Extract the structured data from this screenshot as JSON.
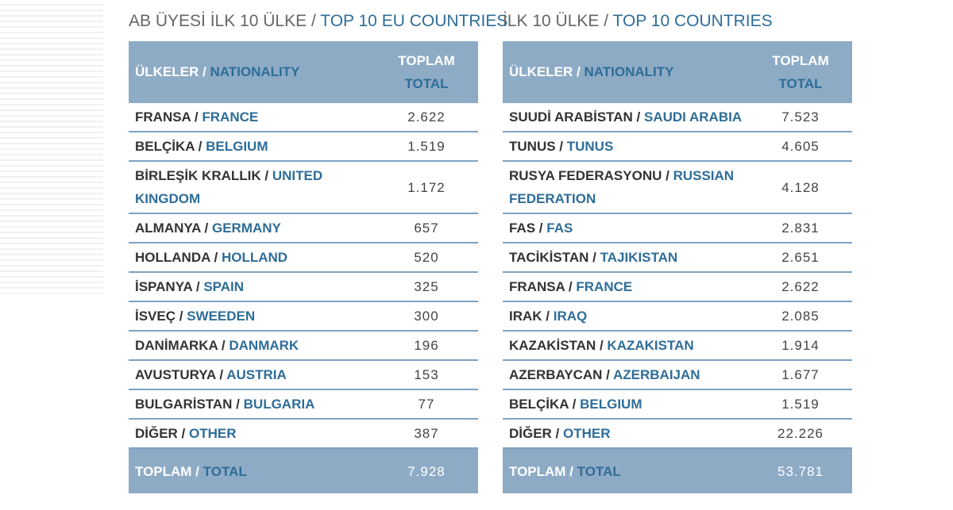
{
  "tables": [
    {
      "title": {
        "tr": "AB ÜYESİ İLK 10 ÜLKE /",
        "en": "TOP 10 EU COUNTRIES"
      },
      "header": {
        "name_tr": "ÜLKELER /",
        "name_en": "NATIONALITY",
        "total_tr": "TOPLAM",
        "total_en": "TOTAL"
      },
      "rows": [
        {
          "tr": "FRANSA /",
          "en": "FRANCE",
          "total": "2.622"
        },
        {
          "tr": "BELÇİKA /",
          "en": "BELGIUM",
          "total": "1.519"
        },
        {
          "tr": "BİRLEŞİK KRALLIK /",
          "en": "UNITED KINGDOM",
          "total": "1.172"
        },
        {
          "tr": "ALMANYA /",
          "en": "GERMANY",
          "total": "657"
        },
        {
          "tr": "HOLLANDA /",
          "en": "HOLLAND",
          "total": "520"
        },
        {
          "tr": "İSPANYA /",
          "en": "SPAIN",
          "total": "325"
        },
        {
          "tr": "İSVEÇ /",
          "en": "SWEEDEN",
          "total": "300"
        },
        {
          "tr": "DANİMARKA /",
          "en": "DANMARK",
          "total": "196"
        },
        {
          "tr": "AVUSTURYA /",
          "en": "AUSTRIA",
          "total": "153"
        },
        {
          "tr": "BULGARİSTAN /",
          "en": "BULGARIA",
          "total": "77"
        },
        {
          "tr": "DİĞER /",
          "en": "OTHER",
          "total": "387"
        }
      ],
      "footer": {
        "tr": "TOPLAM /",
        "en": "TOTAL",
        "total": "7.928"
      }
    },
    {
      "title": {
        "tr": "İLK 10 ÜLKE /",
        "en": "TOP 10 COUNTRIES"
      },
      "header": {
        "name_tr": "ÜLKELER /",
        "name_en": "NATIONALITY",
        "total_tr": "TOPLAM",
        "total_en": "TOTAL"
      },
      "rows": [
        {
          "tr": "SUUDİ ARABİSTAN /",
          "en": "SAUDI ARABIA",
          "total": "7.523"
        },
        {
          "tr": "TUNUS /",
          "en": "TUNUS",
          "total": "4.605"
        },
        {
          "tr": "RUSYA FEDERASYONU /",
          "en": "RUSSIAN FEDERATION",
          "total": "4.128"
        },
        {
          "tr": "FAS /",
          "en": "FAS",
          "total": "2.831"
        },
        {
          "tr": "TACİKİSTAN /",
          "en": "TAJIKISTAN",
          "total": "2.651"
        },
        {
          "tr": "FRANSA /",
          "en": "FRANCE",
          "total": "2.622"
        },
        {
          "tr": "IRAK /",
          "en": "IRAQ",
          "total": "2.085"
        },
        {
          "tr": "KAZAKİSTAN /",
          "en": "KAZAKISTAN",
          "total": "1.914"
        },
        {
          "tr": "AZERBAYCAN /",
          "en": "AZERBAIJAN",
          "total": "1.677"
        },
        {
          "tr": "BELÇİKA /",
          "en": "BELGIUM",
          "total": "1.519"
        },
        {
          "tr": "DİĞER /",
          "en": "OTHER",
          "total": "22.226"
        }
      ],
      "footer": {
        "tr": "TOPLAM /",
        "en": "TOTAL",
        "total": "53.781"
      }
    }
  ]
}
